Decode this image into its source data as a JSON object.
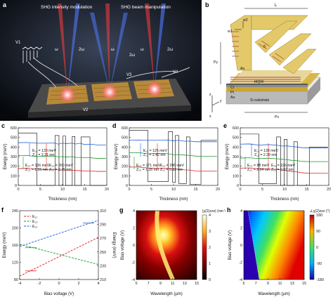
{
  "figure": {
    "panels": {
      "a": {
        "label": "a",
        "title_left": "SHG intensity modulation",
        "title_right": "SHG beam manipulation",
        "beam_labels": [
          "ω",
          "2ω",
          "ω",
          "2ω",
          "ω",
          "2ω"
        ],
        "voltage_labels": [
          "V1",
          "V2",
          "V3",
          "V4"
        ]
      },
      "b": {
        "label": "b",
        "labels": [
          "L",
          "w1",
          "w2",
          "θ",
          "Py",
          "Au",
          "MQW",
          "Cr",
          "Pt",
          "Au",
          "Si substrate",
          "Px"
        ],
        "axis_labels": [
          "z",
          "y",
          "x"
        ]
      },
      "c": {
        "label": "c",
        "xlabel": "Thickness (nm)",
        "ylabel": "Energy (meV)",
        "annotations": [
          "E₁₂ = 133 meV",
          "Z₁₂ = 2.31 nm",
          "E₂₃ = 106 meV",
          "Z₂₃ = 1.55 nm",
          "E₁₃ = 260 meV",
          "Z₁₃ = 0.75 nm"
        ]
      },
      "d": {
        "label": "d",
        "xlabel": "Thickness (nm)",
        "ylabel": "Energy (meV)",
        "annotations": [
          "E₁₂ = 125 meV",
          "Z₁₂ = 2.42 nm",
          "E₂₃ = 171 meV",
          "Z₂₃ = 1.35 nm",
          "E₁₃ = 296 meV",
          "Z₁₃ = 0.92 nm"
        ]
      },
      "e": {
        "label": "e",
        "xlabel": "Thickness (nm)",
        "ylabel": "Energy (meV)",
        "annotations": [
          "E₁₂ = 138 meV",
          "Z₁₂ = 2.29 nm",
          "E₂₃ = 88 meV",
          "Z₂₃ = 2.04 nm",
          "E₁₃ = 226 meV",
          "Z₁₃ = 0.82 nm"
        ]
      },
      "f": {
        "label": "f",
        "xlabel": "Bias voltage (V)",
        "ylabel": "Energy (meV)",
        "ylabel_right": "Energy (meV)",
        "legend": [
          "E₁₂",
          "E₂₃",
          "E₁₃"
        ]
      },
      "g": {
        "label": "g",
        "xlabel": "Wavelength (µm)",
        "ylabel": "Bias voltage (V)",
        "cbar_title": "|χ(2)zzz| (nm V⁻¹)",
        "cbar_ticks": [
          "4",
          "3",
          "2",
          "1",
          "0"
        ]
      },
      "h": {
        "label": "h",
        "xlabel": "Wavelength (µm)",
        "ylabel": "Bias voltage (V)",
        "cbar_title": "∠χ(2)zzz (°)",
        "cbar_ticks": [
          "180",
          "90",
          "0",
          "-90",
          "-180"
        ]
      }
    }
  },
  "chart_data": [
    {
      "panel": "c",
      "type": "line",
      "xlabel": "Thickness (nm)",
      "ylabel": "Energy (meV)",
      "xlim": [
        0,
        20
      ],
      "ylim": [
        0,
        600
      ],
      "xticks": [
        "0",
        "5",
        "10",
        "15",
        "20"
      ],
      "yticks": [
        "0",
        "100",
        "200",
        "300",
        "400",
        "500",
        "600"
      ],
      "series": [
        {
          "color": "#000",
          "x": [
            0,
            4.2,
            4.2,
            8.3,
            8.3,
            9.2,
            9.2,
            10.1,
            10.1,
            10.7,
            10.7,
            12.2,
            12.2,
            12.8,
            12.8,
            14.2,
            14.2,
            16.2,
            16.2,
            19.8
          ],
          "y": [
            545,
            545,
            0,
            0,
            520,
            520,
            0,
            0,
            515,
            515,
            0,
            0,
            510,
            510,
            0,
            0,
            505,
            505,
            0,
            0
          ]
        },
        {
          "color": "#1f5fd6",
          "x": [
            0,
            2,
            4.2,
            6.2,
            8.3,
            9,
            10,
            11,
            12,
            13,
            14,
            15,
            16.2,
            17,
            18,
            19.8
          ],
          "y": [
            445,
            447,
            440,
            440,
            442,
            430,
            440,
            436,
            440,
            432,
            440,
            425,
            430,
            427,
            420,
            420
          ]
        },
        {
          "color": "#1a9a2a",
          "x": [
            0,
            2,
            4.2,
            6.2,
            8.3,
            9,
            10,
            11,
            12,
            13,
            14,
            15,
            16.2,
            17,
            18,
            19.8
          ],
          "y": [
            310,
            312,
            300,
            305,
            305,
            298,
            300,
            296,
            300,
            292,
            292,
            288,
            290,
            285,
            282,
            282
          ]
        },
        {
          "color": "#e02020",
          "x": [
            0,
            2,
            4.2,
            6.2,
            8.3,
            9,
            10,
            11,
            12,
            13,
            14,
            15,
            16.2,
            17,
            18,
            19.8
          ],
          "y": [
            175,
            178,
            170,
            165,
            168,
            160,
            162,
            160,
            158,
            156,
            154,
            150,
            150,
            148,
            146,
            146
          ]
        }
      ]
    },
    {
      "panel": "d",
      "type": "line",
      "xlabel": "Thickness (nm)",
      "ylabel": "Energy (meV)",
      "xlim": [
        0,
        20
      ],
      "ylim": [
        0,
        600
      ],
      "xticks": [
        "0",
        "5",
        "10",
        "15",
        "20"
      ],
      "yticks": [
        "0",
        "100",
        "200",
        "300",
        "400",
        "500",
        "600"
      ],
      "series": [
        {
          "color": "#000",
          "x": [
            0,
            4.2,
            4.2,
            8.8,
            8.8,
            9.8,
            9.8,
            10.4,
            10.4,
            11.2,
            11.2,
            12.9,
            12.9,
            13.7,
            13.7,
            16.2,
            16.2,
            19.8
          ],
          "y": [
            575,
            575,
            40,
            40,
            560,
            560,
            30,
            30,
            520,
            520,
            20,
            20,
            505,
            505,
            10,
            10,
            470,
            470
          ]
        },
        {
          "color": "#1f5fd6",
          "x": [
            0,
            2,
            4.2,
            6.5,
            8.8,
            10,
            11.2,
            12.5,
            13.7,
            15,
            16.2,
            19.8
          ],
          "y": [
            470,
            472,
            470,
            470,
            472,
            465,
            470,
            460,
            462,
            455,
            455,
            455
          ]
        },
        {
          "color": "#1a9a2a",
          "x": [
            0,
            2,
            4.2,
            6.5,
            8.8,
            10,
            11.2,
            12.5,
            13.7,
            15,
            16.2,
            19.8
          ],
          "y": [
            340,
            342,
            330,
            335,
            330,
            320,
            320,
            316,
            312,
            306,
            302,
            302
          ]
        },
        {
          "color": "#e02020",
          "x": [
            0,
            2,
            4.2,
            6.5,
            8.8,
            10,
            11.2,
            12.5,
            13.7,
            15,
            16.2,
            19.8
          ],
          "y": [
            190,
            192,
            182,
            176,
            178,
            170,
            168,
            162,
            160,
            150,
            148,
            148
          ]
        }
      ]
    },
    {
      "panel": "e",
      "type": "line",
      "xlabel": "Thickness (nm)",
      "ylabel": "Energy (meV)",
      "xlim": [
        0,
        20
      ],
      "ylim": [
        0,
        600
      ],
      "xticks": [
        "0",
        "5",
        "10",
        "15",
        "20"
      ],
      "yticks": [
        "0",
        "100",
        "200",
        "300",
        "400",
        "500",
        "600"
      ],
      "series": [
        {
          "color": "#000",
          "x": [
            0,
            4.2,
            4.2,
            8.2,
            8.2,
            9.1,
            9.1,
            9.9,
            9.9,
            10.6,
            10.6,
            12.1,
            12.1,
            12.9,
            12.9,
            15.6,
            15.6,
            19.8
          ],
          "y": [
            535,
            535,
            20,
            20,
            505,
            505,
            -20,
            -20,
            480,
            480,
            -50,
            -50,
            455,
            455,
            -80,
            -80,
            400,
            400
          ]
        },
        {
          "color": "#1f5fd6",
          "x": [
            0,
            2,
            4.2,
            6.2,
            8.2,
            9.5,
            10.6,
            11.5,
            12.9,
            14,
            15.6,
            19.8
          ],
          "y": [
            430,
            432,
            420,
            425,
            420,
            410,
            412,
            405,
            400,
            392,
            390,
            390
          ]
        },
        {
          "color": "#1a9a2a",
          "x": [
            0,
            2,
            4.2,
            6.2,
            8.2,
            9.5,
            10.6,
            11.5,
            12.9,
            14,
            15.6,
            19.8
          ],
          "y": [
            285,
            288,
            280,
            283,
            278,
            272,
            268,
            262,
            258,
            250,
            248,
            248
          ]
        },
        {
          "color": "#e02020",
          "x": [
            0,
            2,
            4.2,
            6.2,
            8.2,
            9.5,
            10.6,
            11.5,
            12.9,
            14,
            15.6,
            19.8
          ],
          "y": [
            180,
            182,
            172,
            170,
            168,
            160,
            152,
            146,
            140,
            132,
            126,
            126
          ]
        }
      ]
    },
    {
      "panel": "f",
      "type": "line",
      "xlabel": "Bias voltage (V)",
      "ylabel": "Energy (meV)",
      "xlim": [
        -4,
        4
      ],
      "ylim": [
        80,
        240
      ],
      "y2lim": [
        210,
        310
      ],
      "xticks": [
        "-4",
        "-2",
        "0",
        "2",
        "4"
      ],
      "yticks": [
        "80",
        "120",
        "160",
        "200",
        "240"
      ],
      "y2ticks": [
        "210",
        "230",
        "250",
        "270",
        "290",
        "310"
      ],
      "series": [
        {
          "name": "E₁₂",
          "color": "#e02020",
          "axis": "left",
          "x": [
            -4,
            4
          ],
          "y": [
            88,
            178
          ]
        },
        {
          "name": "E₂₃",
          "color": "#1a9a2a",
          "axis": "left",
          "x": [
            -4,
            4
          ],
          "y": [
            162,
            115
          ]
        },
        {
          "name": "E₁₃",
          "color": "#1f5fd6",
          "axis": "right",
          "x": [
            -4,
            4
          ],
          "y": [
            258,
            296
          ]
        }
      ]
    },
    {
      "panel": "g",
      "type": "heatmap",
      "xlabel": "Wavelength (µm)",
      "ylabel": "Bias voltage (V)",
      "xlim": [
        5,
        15
      ],
      "ylim": [
        -4,
        4
      ],
      "xticks": [
        "5",
        "7",
        "9",
        "11",
        "13",
        "15"
      ],
      "yticks": [
        "-4",
        "-2",
        "0",
        "2",
        "4"
      ],
      "colorbar": {
        "min": 0,
        "max": 4
      }
    },
    {
      "panel": "h",
      "type": "heatmap",
      "xlabel": "Wavelength (µm)",
      "ylabel": "Bias voltage (V)",
      "xlim": [
        5,
        15
      ],
      "ylim": [
        -4,
        4
      ],
      "xticks": [
        "5",
        "7",
        "9",
        "11",
        "13",
        "15"
      ],
      "yticks": [
        "-4",
        "-2",
        "0",
        "2",
        "4"
      ],
      "colorbar": {
        "min": -180,
        "max": 180
      }
    }
  ]
}
